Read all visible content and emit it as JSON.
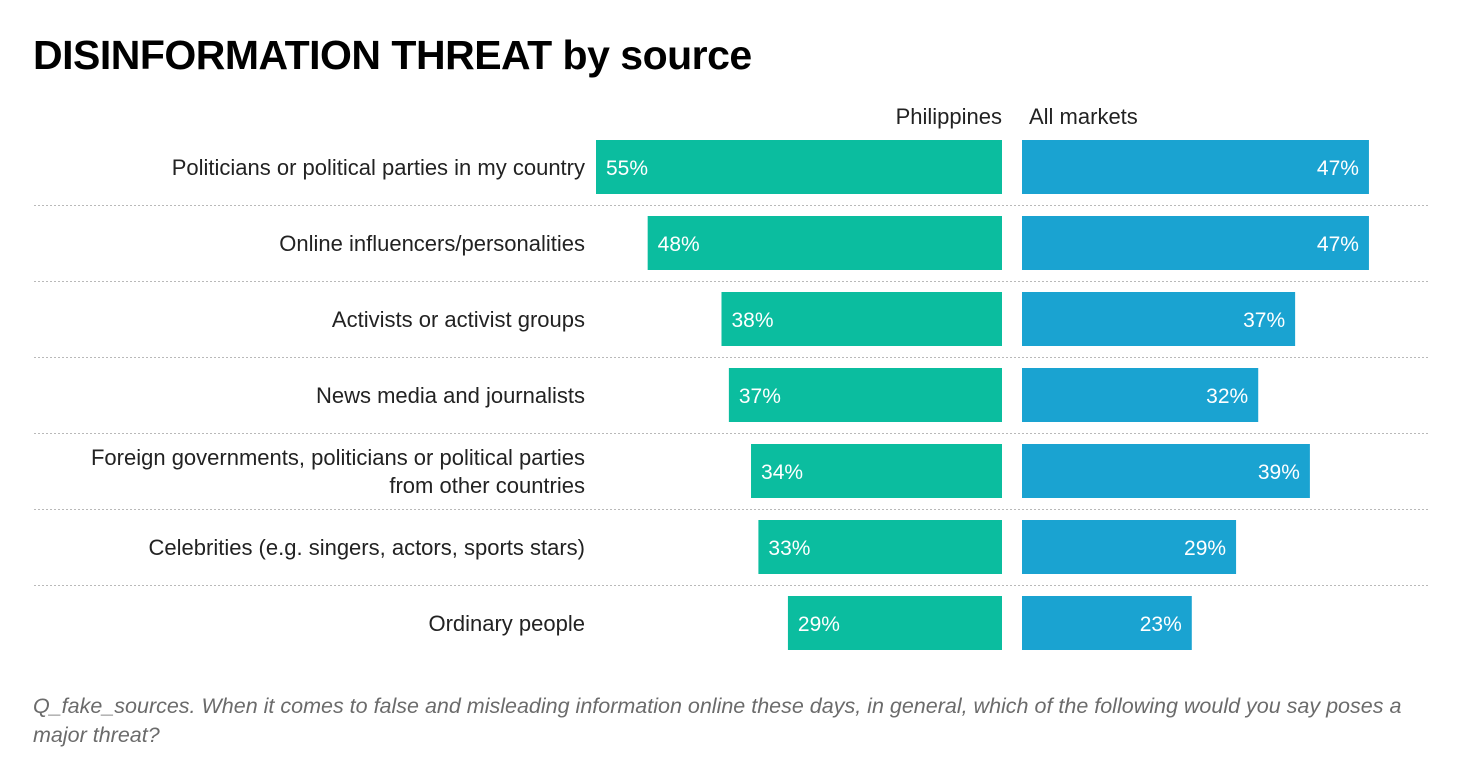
{
  "title": "DISINFORMATION THREAT by source",
  "footnote": "Q_fake_sources. When it comes to false and misleading information online these days, in general, which of the following would you say poses a major threat?",
  "chart_data": {
    "type": "bar",
    "orientation": "horizontal",
    "title": "DISINFORMATION THREAT by source",
    "categories": [
      [
        "Politicians or political parties in my country"
      ],
      [
        "Online influencers/personalities"
      ],
      [
        "Activists or activist groups"
      ],
      [
        "News media and journalists"
      ],
      [
        "Foreign governments, politicians or political parties",
        "from other countries"
      ],
      [
        "Celebrities (e.g. singers, actors, sports stars)"
      ],
      [
        "Ordinary people"
      ]
    ],
    "series": [
      {
        "name": "Philippines",
        "color": "#0bbd9f",
        "values": [
          55,
          48,
          38,
          37,
          34,
          33,
          29
        ],
        "labels": [
          "55%",
          "48%",
          "38%",
          "37%",
          "34%",
          "33%",
          "29%"
        ]
      },
      {
        "name": "All markets",
        "color": "#1aa3d1",
        "values": [
          47,
          47,
          37,
          32,
          39,
          29,
          23
        ],
        "labels": [
          "47%",
          "47%",
          "37%",
          "32%",
          "39%",
          "29%",
          "23%"
        ]
      }
    ],
    "unit": "%",
    "xlim": [
      0,
      55
    ],
    "legend": "top"
  }
}
